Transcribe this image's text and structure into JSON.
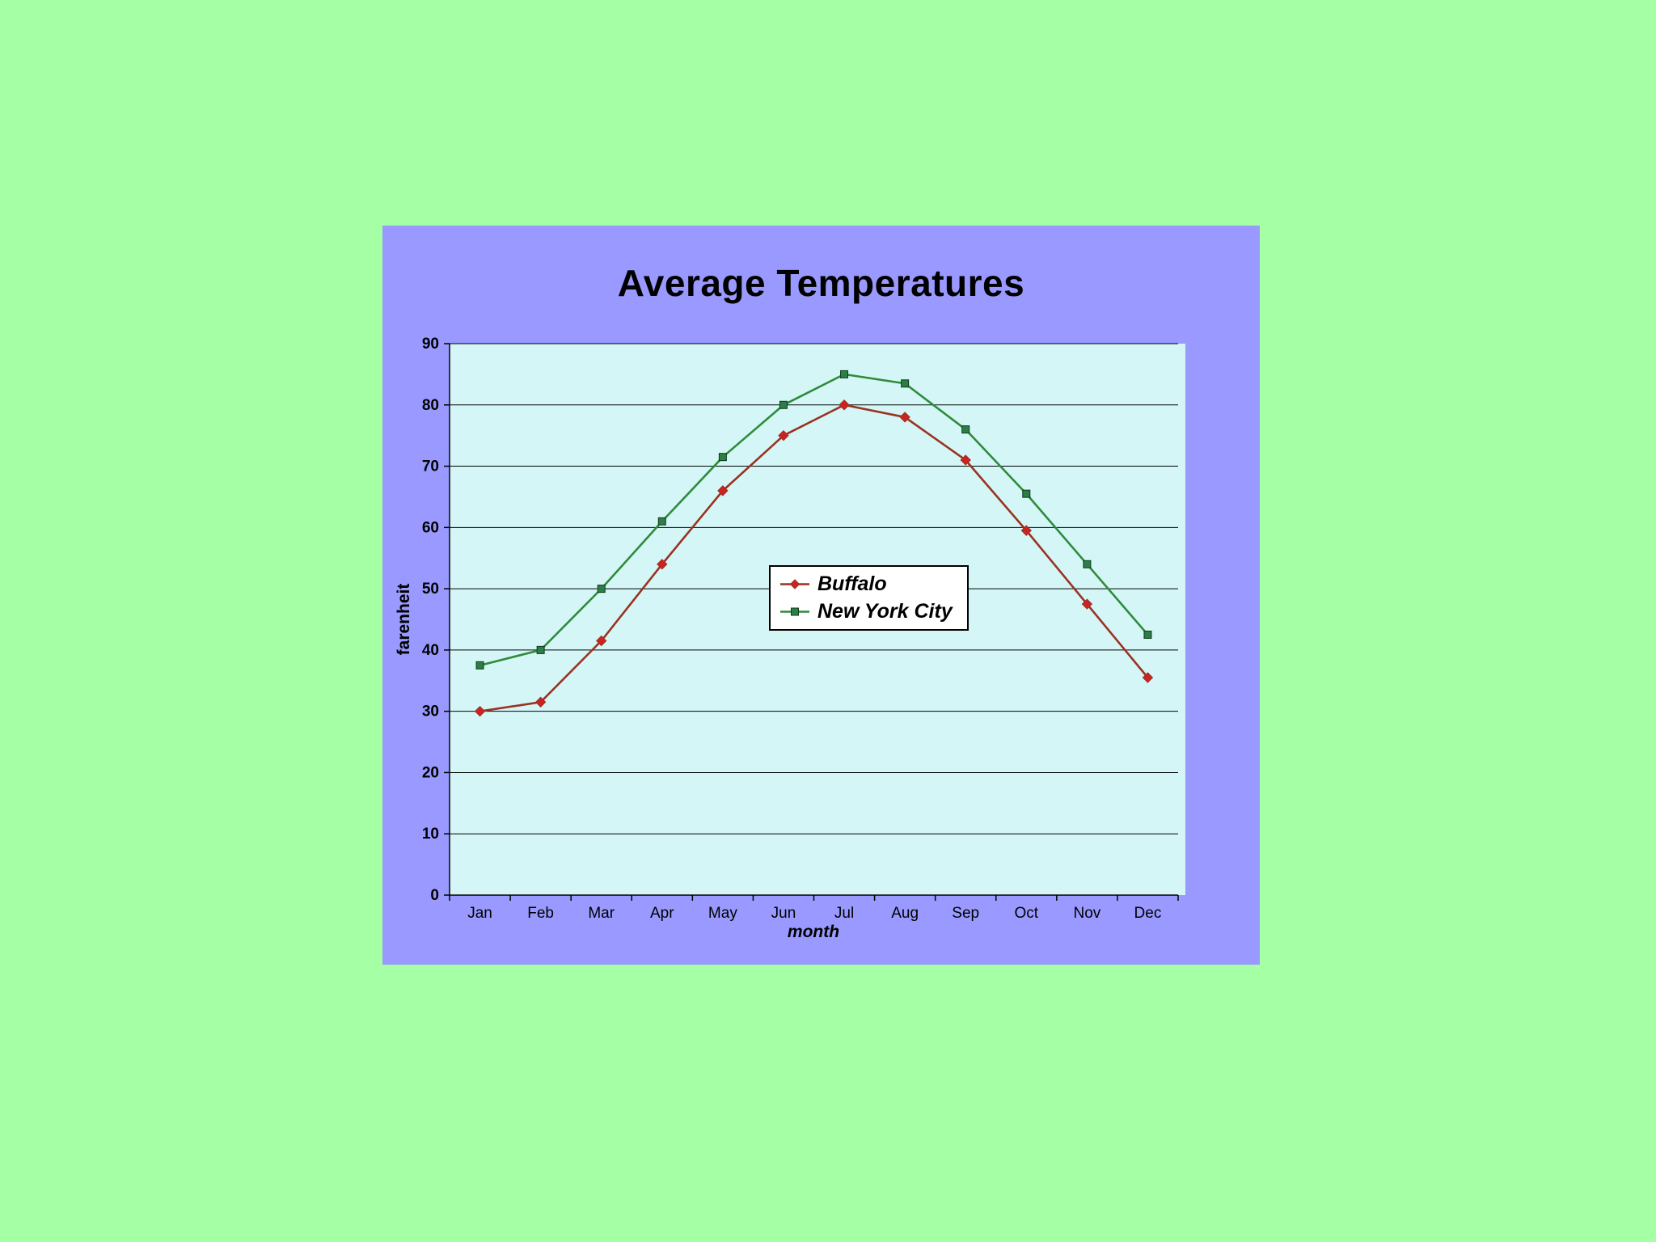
{
  "page": {
    "background": "#a5ffa5"
  },
  "chart": {
    "title": "Average Temperatures",
    "background": "#9999ff",
    "plot_background": "#d5f6f6",
    "ylabel": "farenheit",
    "xlabel": "month"
  },
  "chart_data": {
    "type": "line",
    "title": "Average Temperatures",
    "xlabel": "month",
    "ylabel": "farenheit",
    "categories": [
      "Jan",
      "Feb",
      "Mar",
      "Apr",
      "May",
      "Jun",
      "Jul",
      "Aug",
      "Sep",
      "Oct",
      "Nov",
      "Dec"
    ],
    "series": [
      {
        "name": "Buffalo",
        "color": "#993322",
        "marker_color": "#cc2222",
        "marker": "diamond",
        "values": [
          30,
          31.5,
          41.5,
          54,
          66,
          75,
          80,
          78,
          71,
          59.5,
          47.5,
          35.5
        ]
      },
      {
        "name": "New York City",
        "color": "#2e8b3c",
        "marker_color": "#2e7d46",
        "marker": "square",
        "values": [
          37.5,
          40,
          50,
          61,
          71.5,
          80,
          85,
          83.5,
          76,
          65.5,
          54,
          42.5
        ]
      }
    ],
    "ylim": [
      0,
      90
    ],
    "ytick_step": 10,
    "grid": true,
    "gridline_color": "#000000",
    "legend_position": "center"
  }
}
